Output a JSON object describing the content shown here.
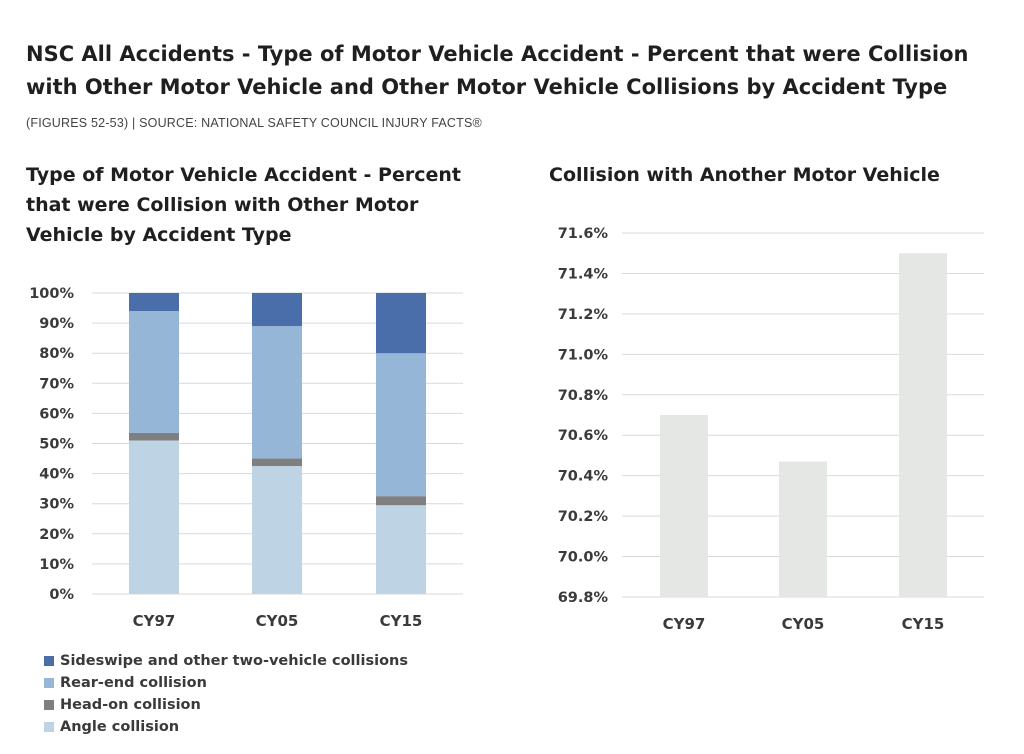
{
  "header": {
    "title": "NSC All Accidents - Type of Motor Vehicle Accident - Percent  that were Collision with Other Motor Vehicle and Other Motor Vehicle Collisions by Accident Type",
    "subtitle": "(FIGURES 52-53)  |  SOURCE: NATIONAL SAFETY COUNCIL INJURY FACTS®"
  },
  "chart_data": [
    {
      "type": "bar",
      "stacked": true,
      "title": "Type of Motor Vehicle Accident - Percent  that were Collision with Other Motor Vehicle by Accident Type",
      "categories": [
        "CY97",
        "CY05",
        "CY15"
      ],
      "series": [
        {
          "name": "Angle collision",
          "color": "#bed3e4",
          "values": [
            51,
            42.5,
            29.5
          ]
        },
        {
          "name": "Head-on collision",
          "color": "#7f7f7f",
          "values": [
            2.5,
            2.5,
            3
          ]
        },
        {
          "name": "Rear-end collision",
          "color": "#95b6d6",
          "values": [
            40.5,
            44,
            47.5
          ]
        },
        {
          "name": "Sideswipe and other two-vehicle collisions",
          "color": "#4a6ea9",
          "values": [
            6,
            11,
            20
          ]
        }
      ],
      "ylim": [
        0,
        100
      ],
      "yticks": [
        0,
        10,
        20,
        30,
        40,
        50,
        60,
        70,
        80,
        90,
        100
      ],
      "ytick_labels": [
        "0%",
        "10%",
        "20%",
        "30%",
        "40%",
        "50%",
        "60%",
        "70%",
        "80%",
        "90%",
        "100%"
      ],
      "grid": true,
      "legend": "bottom",
      "legend_order": [
        "Sideswipe and other two-vehicle collisions",
        "Rear-end collision",
        "Head-on collision",
        "Angle collision"
      ]
    },
    {
      "type": "bar",
      "title": "Collision with Another Motor Vehicle",
      "categories": [
        "CY97",
        "CY05",
        "CY15"
      ],
      "values": [
        70.7,
        70.47,
        71.5
      ],
      "color": "#e5e7e4",
      "ylim": [
        69.8,
        71.6
      ],
      "yticks": [
        69.8,
        70.0,
        70.2,
        70.4,
        70.6,
        70.8,
        71.0,
        71.2,
        71.4,
        71.6
      ],
      "ytick_labels": [
        "69.8%",
        "70.0%",
        "70.2%",
        "70.4%",
        "70.6%",
        "70.8%",
        "71.0%",
        "71.2%",
        "71.4%",
        "71.6%"
      ],
      "grid": true
    }
  ]
}
